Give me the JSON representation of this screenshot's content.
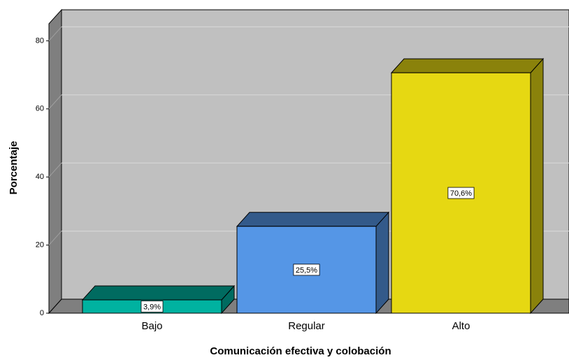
{
  "chart_data": {
    "type": "bar3d",
    "xlabel": "Comunicación efectiva y colobación",
    "ylabel": "Porcentaje",
    "categories": [
      "Bajo",
      "Regular",
      "Alto"
    ],
    "values": [
      3.9,
      25.5,
      70.6
    ],
    "value_labels": [
      "3,9%",
      "25,5%",
      "70,6%"
    ],
    "colors": [
      "#00b2a0",
      "#5596e6",
      "#e6d812"
    ],
    "ylim": [
      0,
      85
    ],
    "yticks": [
      0,
      20,
      40,
      60,
      80
    ],
    "grid": true
  }
}
